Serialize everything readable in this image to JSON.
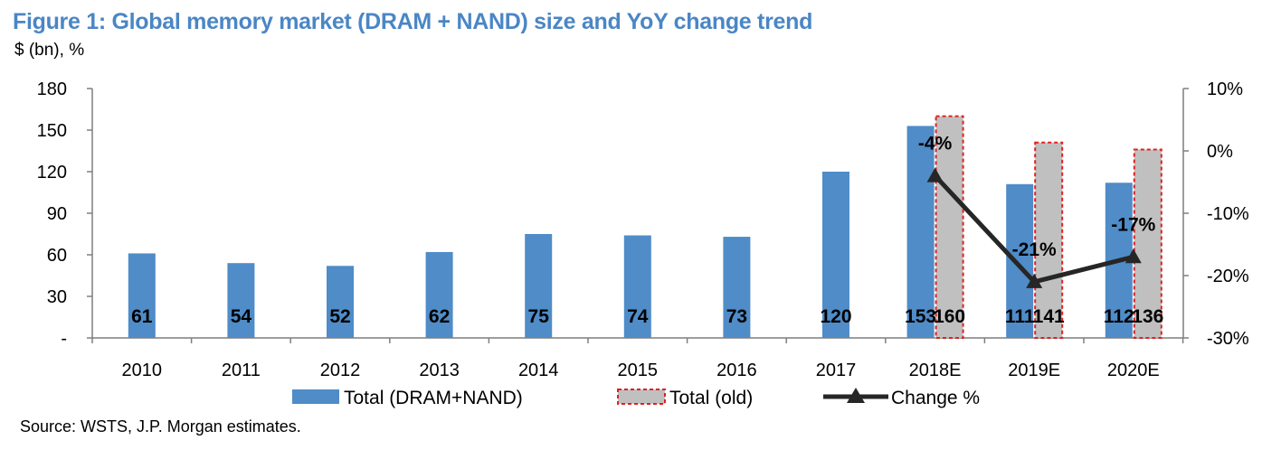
{
  "title": "Figure 1: Global memory market (DRAM + NAND) size and YoY change trend",
  "subtitle": "$ (bn), %",
  "source": "Source: WSTS, J.P. Morgan estimates.",
  "colors": {
    "title": "#4a86c5",
    "bar_new": "#4f8cc8",
    "bar_old_fill": "#c0c0c0",
    "bar_old_border": "#e02020",
    "line": "#262626"
  },
  "chart_data": {
    "type": "bar",
    "categories": [
      "2010",
      "2011",
      "2012",
      "2013",
      "2014",
      "2015",
      "2016",
      "2017",
      "2018E",
      "2019E",
      "2020E"
    ],
    "series": [
      {
        "name": "Total (DRAM+NAND)",
        "kind": "bar",
        "axis": "left",
        "values": [
          61,
          54,
          52,
          62,
          75,
          74,
          73,
          120,
          153,
          111,
          112
        ],
        "labels": [
          "61",
          "54",
          "52",
          "62",
          "75",
          "74",
          "73",
          "120",
          "153",
          "111",
          "112"
        ]
      },
      {
        "name": "Total (old)",
        "kind": "bar",
        "axis": "left",
        "values": [
          null,
          null,
          null,
          null,
          null,
          null,
          null,
          null,
          160,
          141,
          136
        ],
        "labels": [
          "",
          "",
          "",
          "",
          "",
          "",
          "",
          "",
          "160",
          "141",
          "136"
        ]
      },
      {
        "name": "Change %",
        "kind": "line",
        "axis": "right",
        "values": [
          null,
          null,
          null,
          null,
          null,
          null,
          null,
          null,
          -4,
          -21,
          -17
        ],
        "labels": [
          "",
          "",
          "",
          "",
          "",
          "",
          "",
          "",
          "-4%",
          "-21%",
          "-17%"
        ]
      }
    ],
    "y_left": {
      "min": 0,
      "max": 180,
      "ticks": [
        0,
        30,
        60,
        90,
        120,
        150,
        180
      ],
      "tick_labels": [
        "-",
        "30",
        "60",
        "90",
        "120",
        "150",
        "180"
      ]
    },
    "y_right": {
      "min": -30,
      "max": 10,
      "ticks": [
        -30,
        -20,
        -10,
        0,
        10
      ],
      "tick_labels": [
        "-30%",
        "-20%",
        "-10%",
        "0%",
        "10%"
      ]
    },
    "legend_position": "bottom",
    "grid": false
  }
}
